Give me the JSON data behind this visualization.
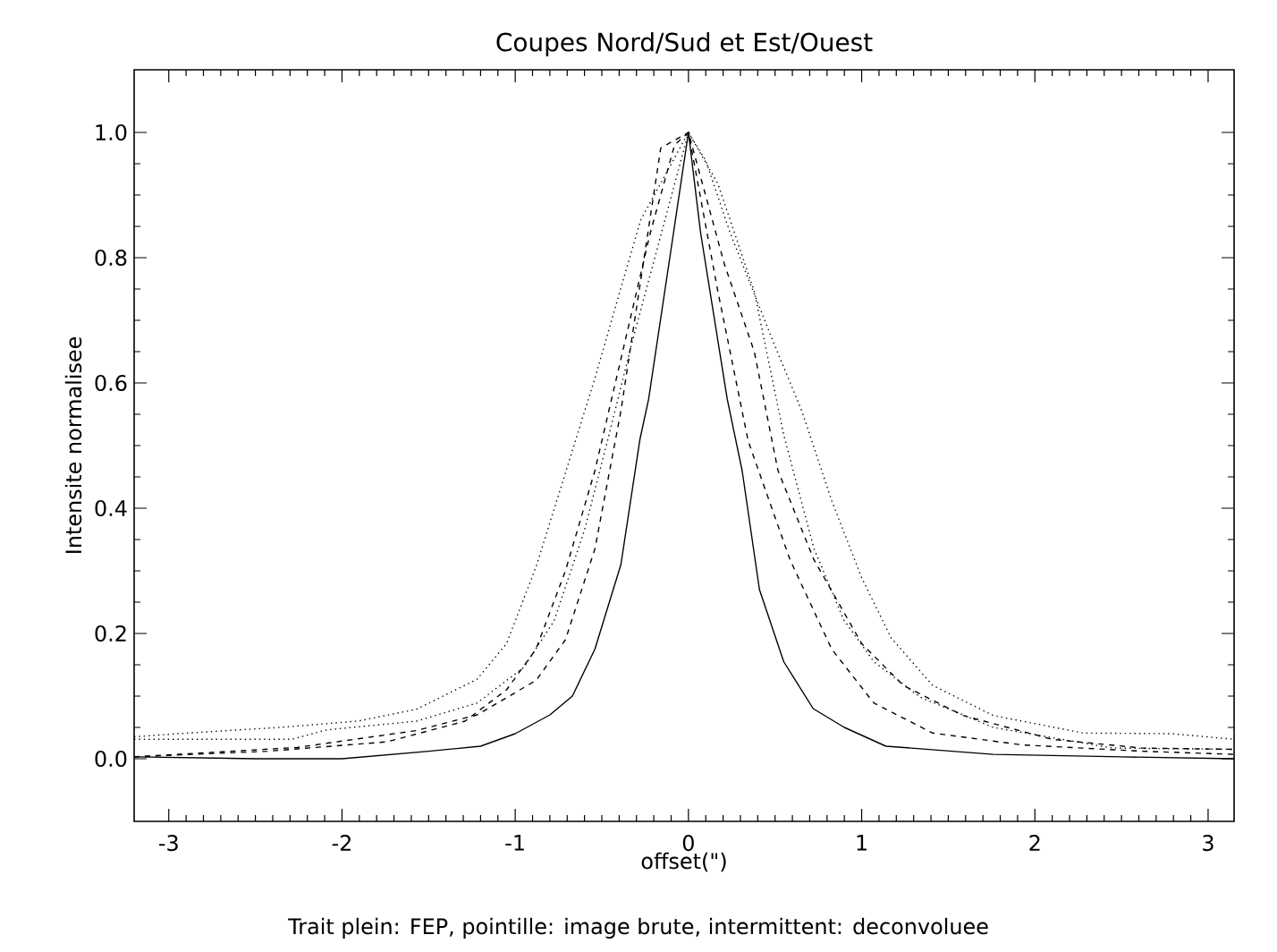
{
  "chart_data": {
    "type": "line",
    "title": "Coupes Nord/Sud et Est/Ouest",
    "xlabel": "offset(\")",
    "ylabel": "Intensite normalisee",
    "annotations": [
      "Trait plein: FEP, pointille: image brute, intermittent: deconvoluee"
    ],
    "xlim": [
      -3.2,
      3.15
    ],
    "ylim": [
      -0.1,
      1.1
    ],
    "xticks": [
      -3,
      -2,
      -1,
      0,
      1,
      2,
      3
    ],
    "yticks": [
      {
        "value": 0,
        "label": "0.0"
      },
      {
        "value": 0.2,
        "label": "0.2"
      },
      {
        "value": 0.4,
        "label": "0.4"
      },
      {
        "value": 0.6,
        "label": "0.6"
      },
      {
        "value": 0.8,
        "label": "0.8"
      },
      {
        "value": 1.0,
        "label": "1.0"
      }
    ],
    "series": [
      {
        "color": "#000000",
        "line_style": "solid",
        "x": [
          -3.2,
          -2.5,
          -2.0,
          -1.5,
          -1.2,
          -1.0,
          -0.8,
          -0.67,
          -0.54,
          -0.39,
          -0.28,
          -0.23,
          -0.086,
          0,
          0.07,
          0.224,
          0.31,
          0.41,
          0.55,
          0.72,
          0.9,
          1.14,
          1.76,
          2.5,
          3.15
        ],
        "values": [
          0.003,
          0.0,
          0.0,
          0.012,
          0.02,
          0.04,
          0.07,
          0.1,
          0.175,
          0.31,
          0.51,
          0.574,
          0.84,
          1.0,
          0.84,
          0.574,
          0.46,
          0.27,
          0.155,
          0.08,
          0.05,
          0.02,
          0.007,
          0.003,
          0.0
        ]
      },
      {
        "color": "#000000",
        "line_style": "dashed",
        "x": [
          -3.2,
          -2.43,
          -1.74,
          -1.29,
          -1.05,
          -0.88,
          -0.71,
          -0.54,
          -0.22,
          -0.08,
          0,
          0.207,
          0.38,
          0.517,
          0.724,
          1.0,
          1.24,
          1.585,
          2.1,
          2.62,
          3.15
        ],
        "values": [
          0.003,
          0.012,
          0.027,
          0.06,
          0.11,
          0.175,
          0.3,
          0.46,
          0.84,
          0.98,
          1.0,
          0.79,
          0.65,
          0.46,
          0.318,
          0.184,
          0.117,
          0.069,
          0.031,
          0.017,
          0.015
        ]
      },
      {
        "color": "#000000",
        "line_style": "dashed",
        "x": [
          -3.2,
          -2.26,
          -1.57,
          -1.22,
          -0.88,
          -0.71,
          -0.54,
          -0.39,
          -0.16,
          0,
          0.17,
          0.345,
          0.586,
          0.827,
          1.07,
          1.41,
          1.93,
          2.62,
          3.15
        ],
        "values": [
          0.003,
          0.018,
          0.045,
          0.07,
          0.125,
          0.19,
          0.335,
          0.555,
          0.975,
          1.0,
          0.746,
          0.507,
          0.318,
          0.175,
          0.089,
          0.041,
          0.022,
          0.012,
          0.007
        ]
      },
      {
        "color": "#000000",
        "line_style": "dotted",
        "x": [
          -3.2,
          -2.95,
          -2.36,
          -1.91,
          -1.57,
          -1.22,
          -1.05,
          -0.879,
          -0.706,
          -0.535,
          -0.396,
          -0.276,
          0,
          0.1,
          0.24,
          0.483,
          0.655,
          0.827,
          1.0,
          1.17,
          1.41,
          1.76,
          2.28,
          2.79,
          3.15
        ],
        "values": [
          0.035,
          0.04,
          0.05,
          0.06,
          0.079,
          0.127,
          0.184,
          0.307,
          0.46,
          0.612,
          0.746,
          0.86,
          1.0,
          0.955,
          0.84,
          0.67,
          0.555,
          0.412,
          0.289,
          0.193,
          0.117,
          0.069,
          0.041,
          0.04,
          0.031
        ]
      },
      {
        "color": "#000000",
        "line_style": "dotted",
        "x": [
          -3.2,
          -2.95,
          -2.29,
          -2.09,
          -1.57,
          -1.22,
          -0.95,
          -0.776,
          -0.6,
          -0.465,
          -0.33,
          0,
          0.17,
          0.38,
          0.55,
          0.724,
          0.896,
          1.07,
          1.34,
          1.76,
          2.45,
          3.15
        ],
        "values": [
          0.031,
          0.031,
          0.031,
          0.046,
          0.06,
          0.089,
          0.146,
          0.22,
          0.365,
          0.51,
          0.66,
          1.0,
          0.918,
          0.746,
          0.517,
          0.336,
          0.222,
          0.155,
          0.098,
          0.05,
          0.017,
          0.015
        ]
      }
    ]
  }
}
